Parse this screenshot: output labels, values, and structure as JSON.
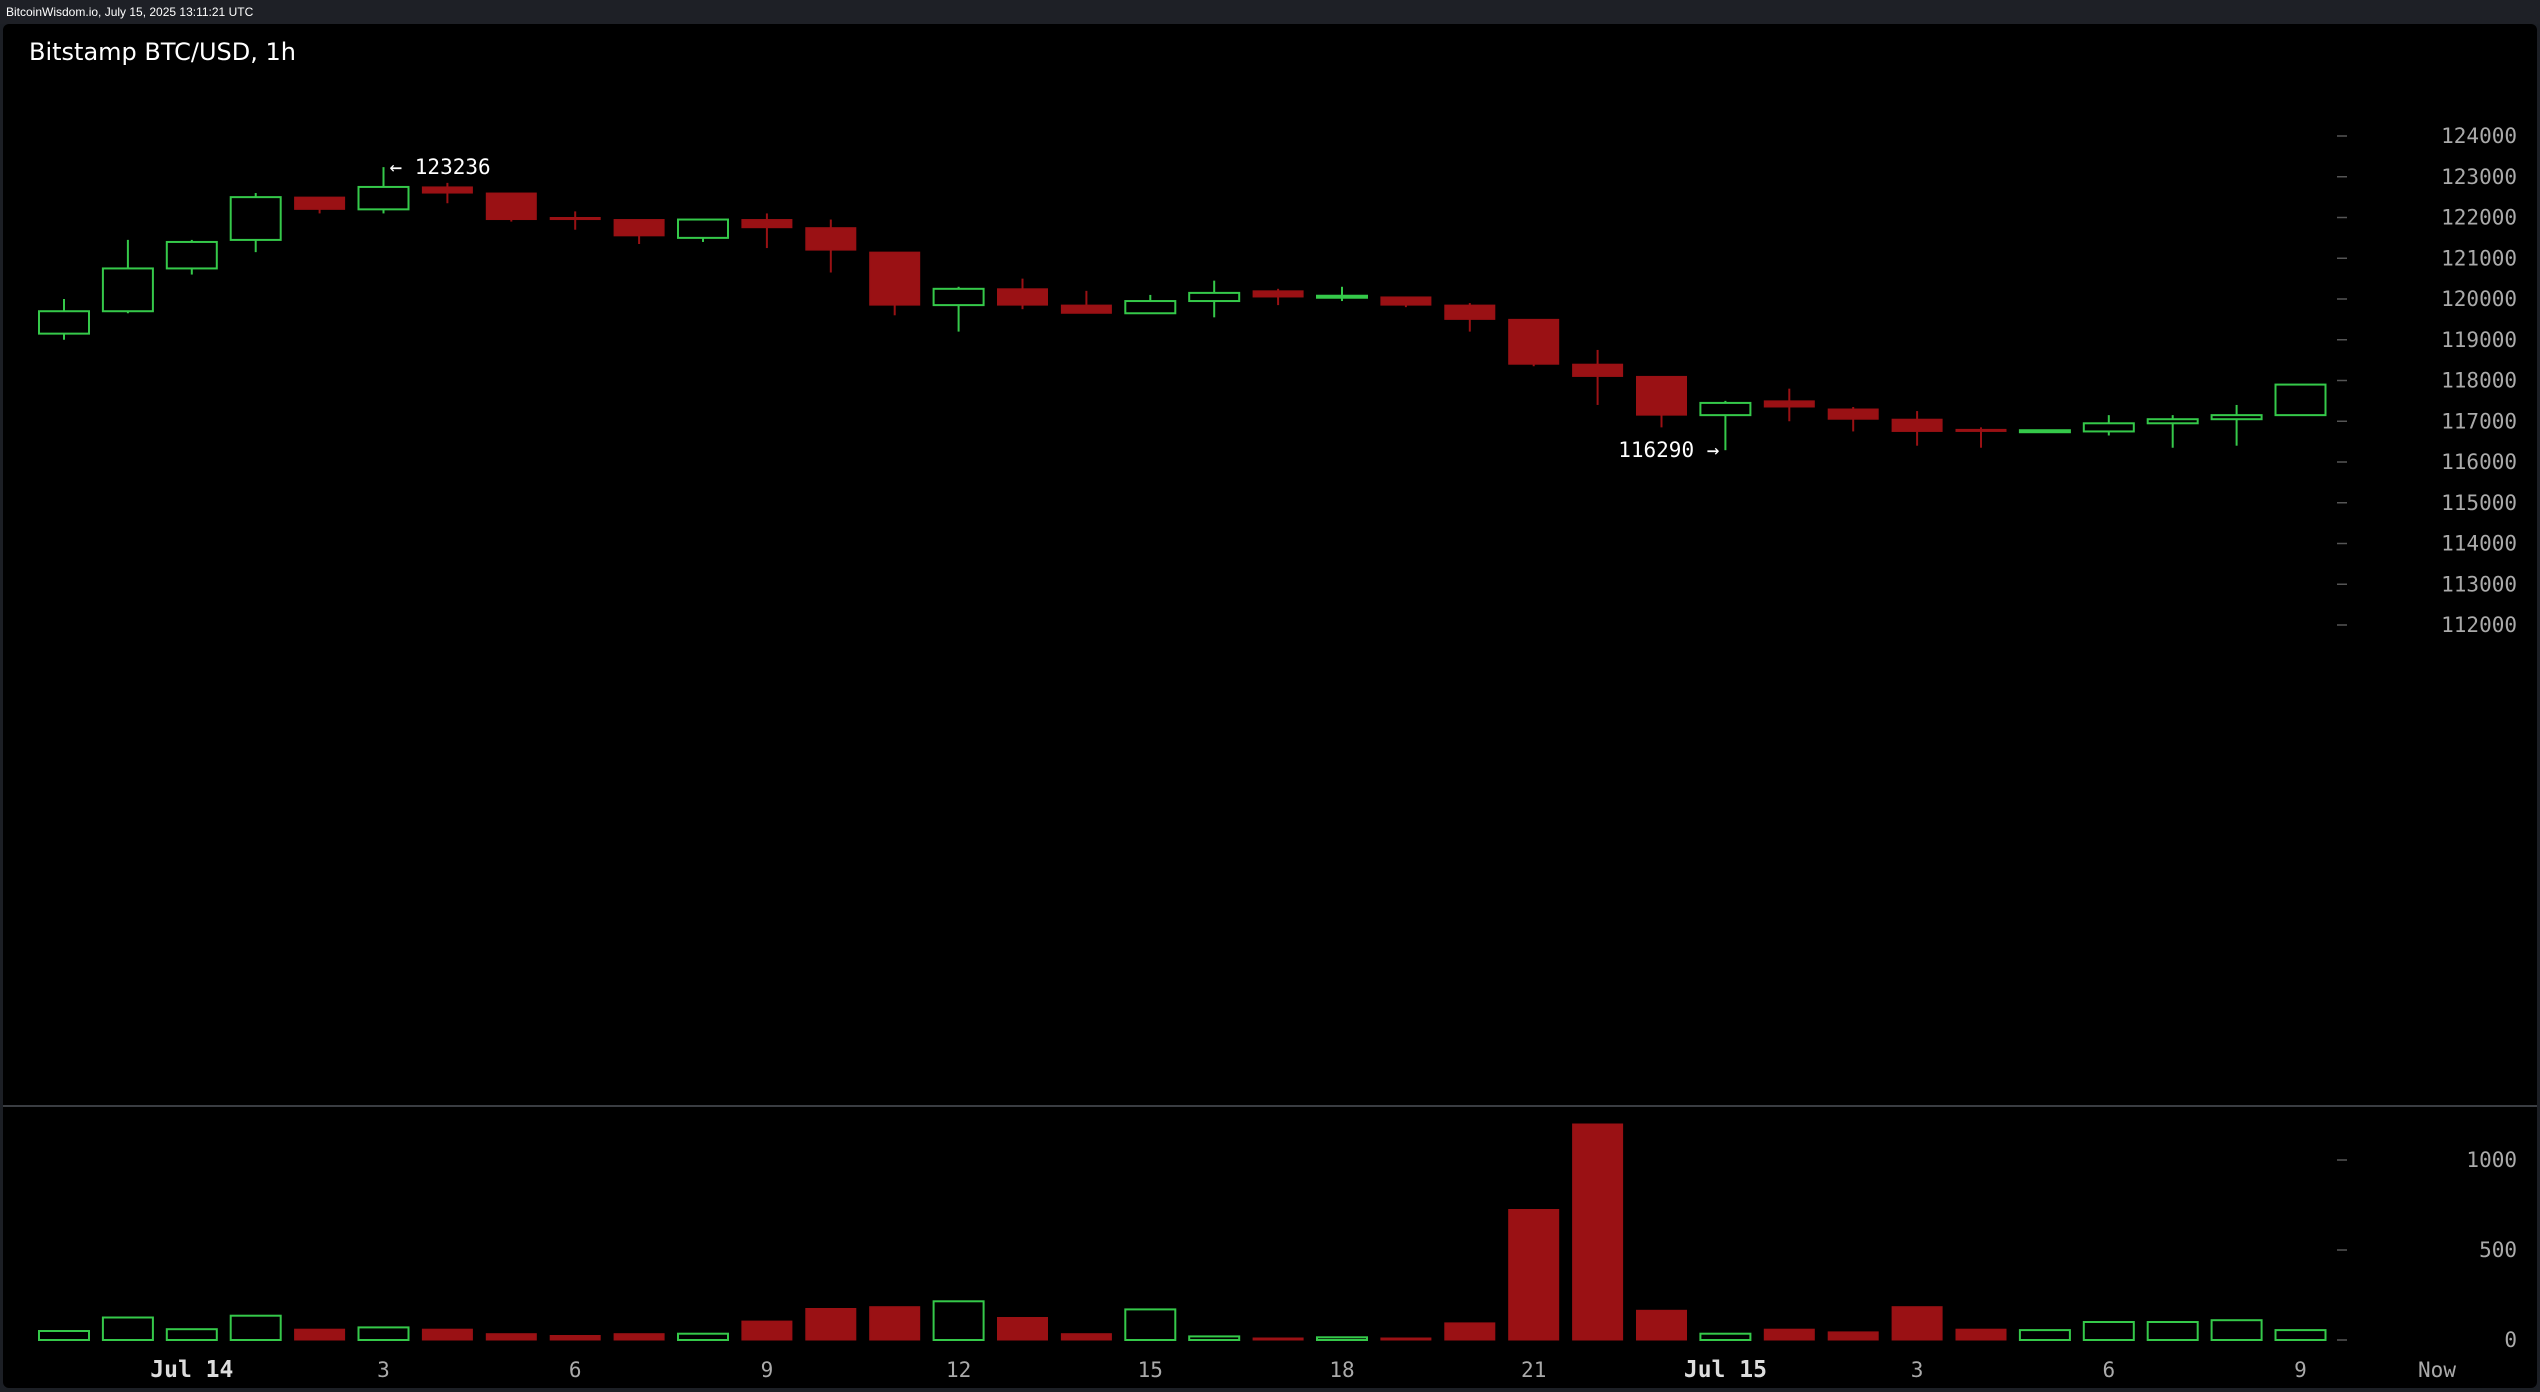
{
  "caption": "BitcoinWisdom.io, July 15, 2025 13:11:21 UTC",
  "colors": {
    "page_background": "#1c1f25",
    "chart_background": "#000000",
    "up": "#35c94a",
    "down": "#9a1114",
    "text": "#ffffff",
    "axis_text": "#aaaaaa",
    "separator": "#3a3d42"
  },
  "chart_data": [
    {
      "type": "candlestick",
      "title": "Bitstamp BTC/USD, 1h",
      "xlabel": "",
      "ylabel": "",
      "ylim": [
        110800,
        125300
      ],
      "y_ticks": [
        112000,
        113000,
        114000,
        115000,
        116000,
        117000,
        118000,
        119000,
        120000,
        121000,
        122000,
        123000,
        124000
      ],
      "grid": false,
      "x_tick_labels": [
        {
          "label": "Jul 14",
          "index": 2,
          "bold": true
        },
        {
          "label": "3",
          "index": 5
        },
        {
          "label": "6",
          "index": 8
        },
        {
          "label": "9",
          "index": 11
        },
        {
          "label": "12",
          "index": 14
        },
        {
          "label": "15",
          "index": 17
        },
        {
          "label": "18",
          "index": 20
        },
        {
          "label": "21",
          "index": 23
        },
        {
          "label": "Jul 15",
          "index": 26,
          "bold": true
        },
        {
          "label": "3",
          "index": 29
        },
        {
          "label": "6",
          "index": 32
        },
        {
          "label": "9",
          "index": 35
        },
        {
          "label": "Now",
          "index": 37
        }
      ],
      "annotations": [
        {
          "text": "← 123236",
          "index": 5,
          "value": 123236,
          "side": "right"
        },
        {
          "text": "116290 →",
          "index": 26,
          "value": 116290,
          "side": "left"
        }
      ],
      "candles": [
        {
          "o": 119150,
          "h": 120000,
          "l": 119000,
          "c": 119700
        },
        {
          "o": 119700,
          "h": 121450,
          "l": 119650,
          "c": 120750
        },
        {
          "o": 120750,
          "h": 121450,
          "l": 120600,
          "c": 121400
        },
        {
          "o": 121450,
          "h": 122600,
          "l": 121150,
          "c": 122500
        },
        {
          "o": 122500,
          "h": 122500,
          "l": 122100,
          "c": 122200
        },
        {
          "o": 122200,
          "h": 123236,
          "l": 122100,
          "c": 122750
        },
        {
          "o": 122750,
          "h": 122850,
          "l": 122350,
          "c": 122600
        },
        {
          "o": 122600,
          "h": 122600,
          "l": 121900,
          "c": 121950
        },
        {
          "o": 122000,
          "h": 122150,
          "l": 121700,
          "c": 121950
        },
        {
          "o": 121950,
          "h": 121950,
          "l": 121350,
          "c": 121550
        },
        {
          "o": 121500,
          "h": 121950,
          "l": 121400,
          "c": 121950
        },
        {
          "o": 121950,
          "h": 122100,
          "l": 121250,
          "c": 121750
        },
        {
          "o": 121750,
          "h": 121950,
          "l": 120650,
          "c": 121200
        },
        {
          "o": 121150,
          "h": 121150,
          "l": 119600,
          "c": 119850
        },
        {
          "o": 119850,
          "h": 120300,
          "l": 119200,
          "c": 120250
        },
        {
          "o": 120250,
          "h": 120500,
          "l": 119750,
          "c": 119850
        },
        {
          "o": 119850,
          "h": 120200,
          "l": 119650,
          "c": 119650
        },
        {
          "o": 119650,
          "h": 120100,
          "l": 119650,
          "c": 119950
        },
        {
          "o": 119950,
          "h": 120450,
          "l": 119550,
          "c": 120150
        },
        {
          "o": 120200,
          "h": 120250,
          "l": 119850,
          "c": 120050
        },
        {
          "o": 120050,
          "h": 120300,
          "l": 119950,
          "c": 120080
        },
        {
          "o": 120050,
          "h": 120050,
          "l": 119800,
          "c": 119850
        },
        {
          "o": 119850,
          "h": 119900,
          "l": 119200,
          "c": 119500
        },
        {
          "o": 119500,
          "h": 119500,
          "l": 118350,
          "c": 118400
        },
        {
          "o": 118400,
          "h": 118750,
          "l": 117400,
          "c": 118100
        },
        {
          "o": 118100,
          "h": 118100,
          "l": 116850,
          "c": 117150
        },
        {
          "o": 117150,
          "h": 117500,
          "l": 116290,
          "c": 117450
        },
        {
          "o": 117500,
          "h": 117800,
          "l": 117000,
          "c": 117350
        },
        {
          "o": 117300,
          "h": 117350,
          "l": 116750,
          "c": 117050
        },
        {
          "o": 117050,
          "h": 117250,
          "l": 116400,
          "c": 116750
        },
        {
          "o": 116800,
          "h": 116850,
          "l": 116350,
          "c": 116750
        },
        {
          "o": 116750,
          "h": 116750,
          "l": 116750,
          "c": 116780
        },
        {
          "o": 116750,
          "h": 117150,
          "l": 116650,
          "c": 116950
        },
        {
          "o": 116950,
          "h": 117150,
          "l": 116350,
          "c": 117050
        },
        {
          "o": 117050,
          "h": 117400,
          "l": 116400,
          "c": 117150
        },
        {
          "o": 117150,
          "h": 117900,
          "l": 117150,
          "c": 117900
        }
      ]
    },
    {
      "type": "bar",
      "title": "",
      "xlabel": "",
      "ylabel": "",
      "ylim": [
        0,
        1200
      ],
      "y_ticks": [
        0,
        500,
        1000
      ],
      "series": [
        {
          "values": [
            50,
            125,
            60,
            135,
            60,
            70,
            60,
            35,
            25,
            35,
            35,
            105,
            175,
            185,
            215,
            125,
            35,
            170,
            20,
            5,
            15,
            5,
            95,
            725,
            1200,
            165,
            35,
            60,
            45,
            185,
            60,
            55,
            100,
            100,
            110,
            55
          ]
        }
      ]
    }
  ]
}
